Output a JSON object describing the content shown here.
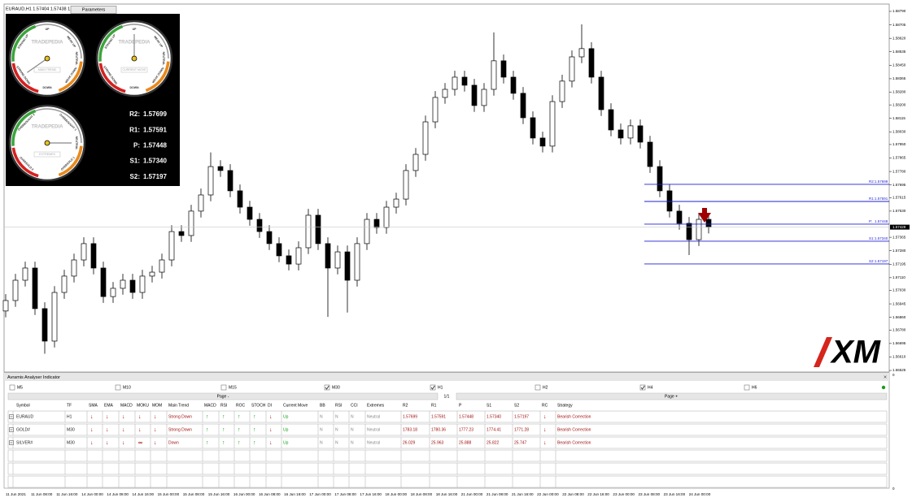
{
  "window": {
    "title": "EURAUD,H1  1.57404 1.57438 1.573",
    "parameters": "Parameters"
  },
  "gauges": [
    {
      "brand": "TRADEPEDIA",
      "caption": "MAIN TREND",
      "labels": [
        "STRONG UP",
        "UP",
        "WEAK UP",
        "NEUTRAL",
        "WEAK DOWN",
        "DOWN",
        "STRONG DOWN"
      ]
    },
    {
      "brand": "TRADEPEDIA",
      "caption": "CURRENT MOVE",
      "labels": [
        "STRONG UP",
        "UP",
        "WEAK UP",
        "NEUTRAL",
        "WEAK DOWN",
        "DOWN",
        "STRONG DOWN"
      ]
    },
    {
      "brand": "TRADEPEDIA",
      "caption": "EXTREMES",
      "labels": [
        "OVERBOUGHT 2",
        "OVERBOUGHT 1",
        "NEUTRAL",
        "OVERSOLD 1",
        "OVERSOLD 2"
      ]
    }
  ],
  "chart_data": {
    "type": "candlestick",
    "open": [
      1.569,
      1.56966,
      1.57094,
      1.57171,
      1.56915,
      1.5671,
      1.57017,
      1.5712,
      1.57222,
      1.57325,
      1.57171,
      1.56991,
      1.57043,
      1.57094,
      1.57017,
      1.5712,
      1.57145,
      1.57222,
      1.57401,
      1.57376,
      1.5753,
      1.57632,
      1.57811,
      1.57786,
      1.57658,
      1.57555,
      1.57478,
      1.57401,
      1.57325,
      1.57248,
      1.57196,
      1.57299,
      1.57504,
      1.57325,
      1.57171,
      1.57273,
      1.57094,
      1.57325,
      1.57478,
      1.57427,
      1.57555,
      1.57606,
      1.57786,
      1.57888,
      1.58093,
      1.58247,
      1.58298,
      1.58375,
      1.58324,
      1.58196,
      1.58298,
      1.58478,
      1.58375,
      1.58273,
      1.58119,
      1.57991,
      1.5794,
      1.58221,
      1.5835,
      1.58503,
      1.58555,
      1.58375,
      1.5817,
      1.58042,
      1.57991,
      1.58068,
      1.57965,
      1.57811,
      1.57658,
      1.5753,
      1.57453,
      1.5735,
      1.57478
    ],
    "high": [
      1.57006,
      1.57134,
      1.57211,
      1.57211,
      1.56955,
      1.57057,
      1.5716,
      1.57262,
      1.57365,
      1.57365,
      1.57211,
      1.57083,
      1.57134,
      1.57134,
      1.5716,
      1.57185,
      1.57262,
      1.57441,
      1.57441,
      1.5757,
      1.57672,
      1.579,
      1.57851,
      1.57826,
      1.57698,
      1.57595,
      1.57518,
      1.57441,
      1.57365,
      1.57288,
      1.57339,
      1.57544,
      1.57544,
      1.57365,
      1.57313,
      1.57313,
      1.57365,
      1.57518,
      1.57518,
      1.57595,
      1.57646,
      1.57826,
      1.57928,
      1.58133,
      1.58287,
      1.58338,
      1.58415,
      1.58415,
      1.58364,
      1.58338,
      1.58657,
      1.58518,
      1.58415,
      1.58313,
      1.58159,
      1.58031,
      1.58261,
      1.5839,
      1.58543,
      1.58708,
      1.58595,
      1.58415,
      1.5821,
      1.58082,
      1.58108,
      1.58108,
      1.58005,
      1.57851,
      1.57698,
      1.5757,
      1.57493,
      1.57518,
      1.57518
    ],
    "low": [
      1.5686,
      1.56926,
      1.57054,
      1.56875,
      1.5663,
      1.5667,
      1.56977,
      1.5708,
      1.57182,
      1.57131,
      1.56951,
      1.56951,
      1.57003,
      1.56977,
      1.56977,
      1.5708,
      1.57105,
      1.57182,
      1.57336,
      1.57336,
      1.5749,
      1.57592,
      1.57746,
      1.57618,
      1.57515,
      1.57438,
      1.57361,
      1.57285,
      1.57208,
      1.57156,
      1.57156,
      1.57259,
      1.57285,
      1.56863,
      1.57131,
      1.5689,
      1.57054,
      1.57285,
      1.57387,
      1.57387,
      1.57515,
      1.57566,
      1.57746,
      1.57848,
      1.58053,
      1.58207,
      1.58258,
      1.58284,
      1.58156,
      1.58156,
      1.58258,
      1.58335,
      1.58233,
      1.58079,
      1.57951,
      1.579,
      1.579,
      1.58181,
      1.5831,
      1.58463,
      1.58335,
      1.5813,
      1.58002,
      1.57951,
      1.57951,
      1.57925,
      1.57771,
      1.57618,
      1.5749,
      1.57413,
      1.57253,
      1.5731,
      1.57389
    ],
    "close": [
      1.56966,
      1.57094,
      1.57171,
      1.56915,
      1.5671,
      1.57017,
      1.5712,
      1.57222,
      1.57325,
      1.57171,
      1.56991,
      1.57043,
      1.57094,
      1.57017,
      1.5712,
      1.57145,
      1.57222,
      1.57401,
      1.57376,
      1.5753,
      1.57632,
      1.57811,
      1.57786,
      1.57658,
      1.57555,
      1.57478,
      1.57401,
      1.57325,
      1.57248,
      1.57196,
      1.57299,
      1.57504,
      1.57325,
      1.57171,
      1.57273,
      1.57094,
      1.57325,
      1.57478,
      1.57427,
      1.57555,
      1.57606,
      1.57786,
      1.57888,
      1.58093,
      1.58247,
      1.58298,
      1.58375,
      1.58324,
      1.58196,
      1.58298,
      1.58478,
      1.58375,
      1.58273,
      1.58119,
      1.57991,
      1.5794,
      1.58221,
      1.5835,
      1.58503,
      1.58555,
      1.58375,
      1.5817,
      1.58042,
      1.57991,
      1.58068,
      1.57965,
      1.57811,
      1.57658,
      1.5753,
      1.57453,
      1.5735,
      1.57478,
      1.57429
    ],
    "colors": {
      "up": "#ffffff",
      "down": "#000000",
      "pivot": "#1f1fd6"
    },
    "ylim": [
      1.56515,
      1.58836
    ],
    "yticks": [
      {
        "value": 1.5879,
        "label": "1.58790"
      },
      {
        "value": 1.58705,
        "label": "1.58705"
      },
      {
        "value": 1.5862,
        "label": "1.58620"
      },
      {
        "value": 1.58535,
        "label": "1.58535"
      },
      {
        "value": 1.5845,
        "label": "1.58450"
      },
      {
        "value": 1.58365,
        "label": "1.58365"
      },
      {
        "value": 1.5828,
        "label": "1.58280"
      },
      {
        "value": 1.582,
        "label": "1.58200"
      },
      {
        "value": 1.58115,
        "label": "1.58115"
      },
      {
        "value": 1.5803,
        "label": "1.58030"
      },
      {
        "value": 1.5795,
        "label": "1.57950"
      },
      {
        "value": 1.57865,
        "label": "1.57865"
      },
      {
        "value": 1.5778,
        "label": "1.57780"
      },
      {
        "value": 1.57695,
        "label": "1.57695"
      },
      {
        "value": 1.57615,
        "label": "1.57615"
      },
      {
        "value": 1.5753,
        "label": "1.57530"
      },
      {
        "value": 1.57365,
        "label": "1.57365"
      },
      {
        "value": 1.5728,
        "label": "1.57280"
      },
      {
        "value": 1.57195,
        "label": "1.57195"
      },
      {
        "value": 1.5711,
        "label": "1.57110"
      },
      {
        "value": 1.5703,
        "label": "1.57030"
      },
      {
        "value": 1.56945,
        "label": "1.56945"
      },
      {
        "value": 1.5686,
        "label": "1.56860"
      },
      {
        "value": 1.5678,
        "label": "1.56780"
      },
      {
        "value": 1.56695,
        "label": "1.56695"
      },
      {
        "value": 1.5661,
        "label": "1.56610"
      },
      {
        "value": 1.56525,
        "label": "1.56525"
      }
    ],
    "x_labels": [
      "11 Jun 2021",
      "11 Jun 08:00",
      "11 Jun 16:00",
      "14 Jun 00:00",
      "14 Jun 08:00",
      "14 Jun 16:00",
      "15 Jun 00:00",
      "15 Jun 08:00",
      "15 Jun 16:00",
      "16 Jun 00:00",
      "16 Jun 08:00",
      "16 Jun 16:00",
      "17 Jun 00:00",
      "17 Jun 08:00",
      "17 Jun 16:00",
      "18 Jun 00:00",
      "18 Jun 08:00",
      "18 Jun 16:00",
      "21 Jun 00:00",
      "21 Jun 08:00",
      "21 Jun 16:00",
      "22 Jun 00:00",
      "22 Jun 08:00",
      "22 Jun 16:00",
      "23 Jun 00:00",
      "23 Jun 08:00",
      "23 Jun 16:00",
      "24 Jun 00:00"
    ],
    "pivots": [
      {
        "name": "R2:",
        "value": 1.57699,
        "label": "1.57699"
      },
      {
        "name": "R1:",
        "value": 1.57591,
        "label": "1.57591"
      },
      {
        "name": "P:",
        "value": 1.57448,
        "label": "1.57448"
      },
      {
        "name": "S1:",
        "value": 1.5734,
        "label": "1.57340"
      },
      {
        "name": "S2:",
        "value": 1.57197,
        "label": "1.57197"
      }
    ],
    "current_price": {
      "value": 1.57429,
      "label": "1.57429"
    }
  },
  "logo": "XM",
  "panel": {
    "title": "Avramis Analyser Indicator",
    "close": "×",
    "timeframes": [
      {
        "label": "M5",
        "checked": false
      },
      {
        "label": "M10",
        "checked": false
      },
      {
        "label": "M15",
        "checked": false
      },
      {
        "label": "M30",
        "checked": true
      },
      {
        "label": "H1",
        "checked": true
      },
      {
        "label": "H2",
        "checked": false
      },
      {
        "label": "H4",
        "checked": true
      },
      {
        "label": "H6",
        "checked": false
      }
    ],
    "page_prev": "Page -",
    "page_info": "1/1",
    "page_next": "Page +",
    "columns": [
      "Symbol",
      "TF",
      "SMA",
      "EMA",
      "MACD",
      "MOKU",
      "MOM",
      "Main Trend",
      "MACD",
      "RSI",
      "ROC",
      "STOCH",
      "DI",
      "Current Move",
      "BB",
      "RSI",
      "CCI",
      "Extremes",
      "R2",
      "R1",
      "P",
      "S1",
      "S2",
      "RC",
      "Strategy"
    ],
    "rows": [
      [
        "EURAUD",
        "H1",
        "↓",
        "↓",
        "↓",
        "↓",
        "↓",
        "Strong Down",
        "↑",
        "↑",
        "↑",
        "↑",
        "↓",
        "Up",
        "N",
        "N",
        "N",
        "Neutral",
        "1.57699",
        "1.57591",
        "1.57448",
        "1.57340",
        "1.57197",
        "↓",
        "Bearish Correction"
      ],
      [
        "GOLD#",
        "M30",
        "↓",
        "↓",
        "↓",
        "↓",
        "↓",
        "Strong Down",
        "↑",
        "↑",
        "↑",
        "↑",
        "↓",
        "Up",
        "N",
        "N",
        "N",
        "Neutral",
        "1783.18",
        "1780.36",
        "1777.23",
        "1774.41",
        "1771.28",
        "↓",
        "Bearish Correction"
      ],
      [
        "SILVER#",
        "M30",
        "↓",
        "↓",
        "↓",
        "∞",
        "↓",
        "Down",
        "↑",
        "↑",
        "↑",
        "↑",
        "↓",
        "Up",
        "N",
        "N",
        "N",
        "Neutral",
        "26.029",
        "25.963",
        "25.888",
        "25.822",
        "25.747",
        "↓",
        "Bearish Correction"
      ]
    ],
    "scale_top": "0",
    "scale_bottom": "0"
  }
}
